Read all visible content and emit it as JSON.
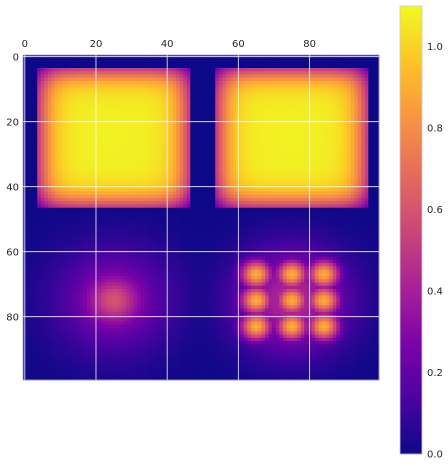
{
  "chart_data": {
    "type": "heatmap",
    "title": "",
    "xlabel": "",
    "ylabel": "",
    "colormap": "plasma",
    "x_axis_position": "top",
    "grid": true,
    "image_size": [
      100,
      100
    ],
    "xlim": [
      -0.5,
      99.5
    ],
    "ylim": [
      99.5,
      -0.5
    ],
    "x_ticks": [
      0,
      20,
      40,
      60,
      80
    ],
    "y_ticks": [
      0,
      20,
      40,
      60,
      80
    ],
    "colorbar": {
      "range": [
        0.0,
        1.1
      ],
      "ticks": [
        "0.0",
        "0.2",
        "0.4",
        "0.6",
        "0.8",
        "1.0"
      ]
    },
    "regions": [
      {
        "quadrant": "top-left",
        "shape": "smoothed square plateau",
        "center": [
          25,
          25
        ],
        "half_width": 21,
        "peak_value": 1.08
      },
      {
        "quadrant": "top-right",
        "shape": "smoothed square plateau",
        "center": [
          75,
          25
        ],
        "half_width": 21,
        "peak_value": 1.08
      },
      {
        "quadrant": "bottom-left",
        "shape": "gaussian blob",
        "center": [
          25,
          75
        ],
        "peak_value": 0.6
      },
      {
        "quadrant": "bottom-right",
        "shape": "3x3 grid of gaussian spots",
        "spot_x": [
          65,
          75,
          84
        ],
        "spot_y": [
          67,
          75,
          83
        ],
        "peak_value": 0.9
      }
    ]
  }
}
